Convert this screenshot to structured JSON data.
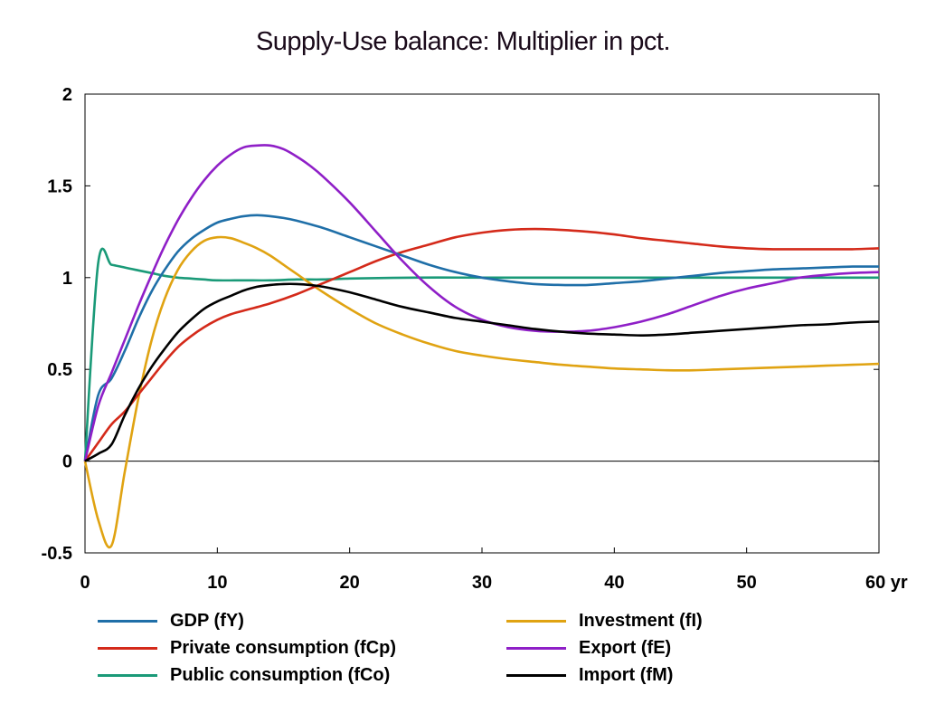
{
  "chart_data": {
    "type": "line",
    "title": "Supply-Use balance: Multiplier in pct.",
    "xlabel": "",
    "ylabel": "",
    "x_unit": "yr",
    "xlim": [
      0,
      60
    ],
    "ylim": [
      -0.5,
      2
    ],
    "xticks": [
      0,
      10,
      20,
      30,
      40,
      50,
      60
    ],
    "xtick_labels": [
      "0",
      "10",
      "20",
      "30",
      "40",
      "50",
      "60 yr"
    ],
    "yticks": [
      -0.5,
      0,
      0.5,
      1,
      1.5,
      2
    ],
    "ytick_labels": [
      "-0.5",
      "0",
      "0.5",
      "1",
      "1.5",
      "2"
    ],
    "grid": false,
    "legend_position": "bottom",
    "series": [
      {
        "name": "GDP (fY)",
        "color": "#1f6fa8",
        "points": [
          [
            0,
            0
          ],
          [
            1,
            0.36
          ],
          [
            2,
            0.45
          ],
          [
            3,
            0.6
          ],
          [
            4,
            0.77
          ],
          [
            5,
            0.92
          ],
          [
            6,
            1.04
          ],
          [
            7,
            1.14
          ],
          [
            8,
            1.21
          ],
          [
            9,
            1.26
          ],
          [
            10,
            1.3
          ],
          [
            11,
            1.32
          ],
          [
            12,
            1.335
          ],
          [
            13,
            1.34
          ],
          [
            14,
            1.335
          ],
          [
            15,
            1.325
          ],
          [
            16,
            1.31
          ],
          [
            18,
            1.27
          ],
          [
            20,
            1.22
          ],
          [
            22,
            1.17
          ],
          [
            24,
            1.12
          ],
          [
            26,
            1.07
          ],
          [
            28,
            1.03
          ],
          [
            30,
            1.0
          ],
          [
            32,
            0.98
          ],
          [
            34,
            0.965
          ],
          [
            36,
            0.96
          ],
          [
            38,
            0.96
          ],
          [
            40,
            0.97
          ],
          [
            42,
            0.98
          ],
          [
            44,
            0.995
          ],
          [
            46,
            1.01
          ],
          [
            48,
            1.025
          ],
          [
            50,
            1.035
          ],
          [
            52,
            1.045
          ],
          [
            54,
            1.05
          ],
          [
            56,
            1.055
          ],
          [
            58,
            1.06
          ],
          [
            60,
            1.06
          ]
        ]
      },
      {
        "name": "Private consumption (fCp)",
        "color": "#d42a1a",
        "points": [
          [
            0,
            0
          ],
          [
            1,
            0.1
          ],
          [
            2,
            0.2
          ],
          [
            3,
            0.27
          ],
          [
            4,
            0.36
          ],
          [
            5,
            0.45
          ],
          [
            6,
            0.54
          ],
          [
            7,
            0.62
          ],
          [
            8,
            0.68
          ],
          [
            9,
            0.73
          ],
          [
            10,
            0.77
          ],
          [
            11,
            0.8
          ],
          [
            12,
            0.82
          ],
          [
            14,
            0.86
          ],
          [
            16,
            0.91
          ],
          [
            18,
            0.97
          ],
          [
            20,
            1.03
          ],
          [
            22,
            1.09
          ],
          [
            24,
            1.14
          ],
          [
            26,
            1.18
          ],
          [
            28,
            1.22
          ],
          [
            30,
            1.245
          ],
          [
            32,
            1.26
          ],
          [
            34,
            1.265
          ],
          [
            36,
            1.26
          ],
          [
            38,
            1.25
          ],
          [
            40,
            1.235
          ],
          [
            42,
            1.215
          ],
          [
            44,
            1.2
          ],
          [
            46,
            1.185
          ],
          [
            48,
            1.17
          ],
          [
            50,
            1.16
          ],
          [
            52,
            1.155
          ],
          [
            54,
            1.155
          ],
          [
            56,
            1.155
          ],
          [
            58,
            1.155
          ],
          [
            60,
            1.16
          ]
        ]
      },
      {
        "name": "Public consumption (fCo)",
        "color": "#1a9a78",
        "points": [
          [
            0,
            0
          ],
          [
            1,
            1.08
          ],
          [
            2,
            1.07
          ],
          [
            3,
            1.055
          ],
          [
            4,
            1.04
          ],
          [
            5,
            1.025
          ],
          [
            6,
            1.01
          ],
          [
            7,
            1.0
          ],
          [
            8,
            0.995
          ],
          [
            9,
            0.99
          ],
          [
            10,
            0.985
          ],
          [
            12,
            0.985
          ],
          [
            14,
            0.985
          ],
          [
            16,
            0.99
          ],
          [
            18,
            0.99
          ],
          [
            20,
            0.995
          ],
          [
            25,
            1.0
          ],
          [
            30,
            1.0
          ],
          [
            35,
            1.0
          ],
          [
            40,
            1.0
          ],
          [
            45,
            1.0
          ],
          [
            50,
            1.0
          ],
          [
            55,
            1.0
          ],
          [
            60,
            1.0
          ]
        ]
      },
      {
        "name": "Investment (fI)",
        "color": "#e0a312",
        "points": [
          [
            0,
            0
          ],
          [
            1,
            -0.32
          ],
          [
            2,
            -0.46
          ],
          [
            3,
            -0.06
          ],
          [
            4,
            0.33
          ],
          [
            5,
            0.65
          ],
          [
            6,
            0.88
          ],
          [
            7,
            1.04
          ],
          [
            8,
            1.14
          ],
          [
            9,
            1.2
          ],
          [
            10,
            1.22
          ],
          [
            11,
            1.215
          ],
          [
            12,
            1.19
          ],
          [
            13,
            1.16
          ],
          [
            14,
            1.12
          ],
          [
            15,
            1.07
          ],
          [
            16,
            1.02
          ],
          [
            18,
            0.92
          ],
          [
            20,
            0.83
          ],
          [
            22,
            0.75
          ],
          [
            24,
            0.69
          ],
          [
            26,
            0.64
          ],
          [
            28,
            0.6
          ],
          [
            30,
            0.575
          ],
          [
            32,
            0.555
          ],
          [
            34,
            0.54
          ],
          [
            36,
            0.525
          ],
          [
            38,
            0.515
          ],
          [
            40,
            0.505
          ],
          [
            42,
            0.5
          ],
          [
            44,
            0.495
          ],
          [
            46,
            0.495
          ],
          [
            48,
            0.5
          ],
          [
            50,
            0.505
          ],
          [
            52,
            0.51
          ],
          [
            54,
            0.515
          ],
          [
            56,
            0.52
          ],
          [
            58,
            0.525
          ],
          [
            60,
            0.53
          ]
        ]
      },
      {
        "name": "Export (fE)",
        "color": "#8f1fc7",
        "points": [
          [
            0,
            0
          ],
          [
            1,
            0.3
          ],
          [
            2,
            0.48
          ],
          [
            3,
            0.66
          ],
          [
            4,
            0.84
          ],
          [
            5,
            1.01
          ],
          [
            6,
            1.17
          ],
          [
            7,
            1.31
          ],
          [
            8,
            1.43
          ],
          [
            9,
            1.53
          ],
          [
            10,
            1.61
          ],
          [
            11,
            1.67
          ],
          [
            12,
            1.71
          ],
          [
            13,
            1.72
          ],
          [
            14,
            1.72
          ],
          [
            15,
            1.7
          ],
          [
            16,
            1.66
          ],
          [
            17,
            1.61
          ],
          [
            18,
            1.55
          ],
          [
            20,
            1.41
          ],
          [
            22,
            1.25
          ],
          [
            24,
            1.09
          ],
          [
            26,
            0.95
          ],
          [
            28,
            0.84
          ],
          [
            30,
            0.77
          ],
          [
            32,
            0.73
          ],
          [
            34,
            0.71
          ],
          [
            36,
            0.705
          ],
          [
            38,
            0.71
          ],
          [
            40,
            0.73
          ],
          [
            42,
            0.76
          ],
          [
            44,
            0.8
          ],
          [
            46,
            0.85
          ],
          [
            48,
            0.9
          ],
          [
            50,
            0.94
          ],
          [
            52,
            0.97
          ],
          [
            54,
            1.0
          ],
          [
            56,
            1.015
          ],
          [
            58,
            1.025
          ],
          [
            60,
            1.03
          ]
        ]
      },
      {
        "name": "Import (fM)",
        "color": "#000000",
        "points": [
          [
            0,
            0
          ],
          [
            1,
            0.04
          ],
          [
            2,
            0.09
          ],
          [
            3,
            0.25
          ],
          [
            4,
            0.39
          ],
          [
            5,
            0.51
          ],
          [
            6,
            0.61
          ],
          [
            7,
            0.7
          ],
          [
            8,
            0.77
          ],
          [
            9,
            0.83
          ],
          [
            10,
            0.87
          ],
          [
            11,
            0.9
          ],
          [
            12,
            0.93
          ],
          [
            13,
            0.95
          ],
          [
            14,
            0.96
          ],
          [
            15,
            0.965
          ],
          [
            16,
            0.965
          ],
          [
            17,
            0.96
          ],
          [
            18,
            0.95
          ],
          [
            20,
            0.92
          ],
          [
            22,
            0.88
          ],
          [
            24,
            0.84
          ],
          [
            26,
            0.81
          ],
          [
            28,
            0.78
          ],
          [
            30,
            0.76
          ],
          [
            32,
            0.74
          ],
          [
            34,
            0.72
          ],
          [
            36,
            0.705
          ],
          [
            38,
            0.695
          ],
          [
            40,
            0.69
          ],
          [
            42,
            0.685
          ],
          [
            44,
            0.69
          ],
          [
            46,
            0.7
          ],
          [
            48,
            0.71
          ],
          [
            50,
            0.72
          ],
          [
            52,
            0.73
          ],
          [
            54,
            0.74
          ],
          [
            56,
            0.745
          ],
          [
            58,
            0.755
          ],
          [
            60,
            0.76
          ]
        ]
      }
    ]
  }
}
